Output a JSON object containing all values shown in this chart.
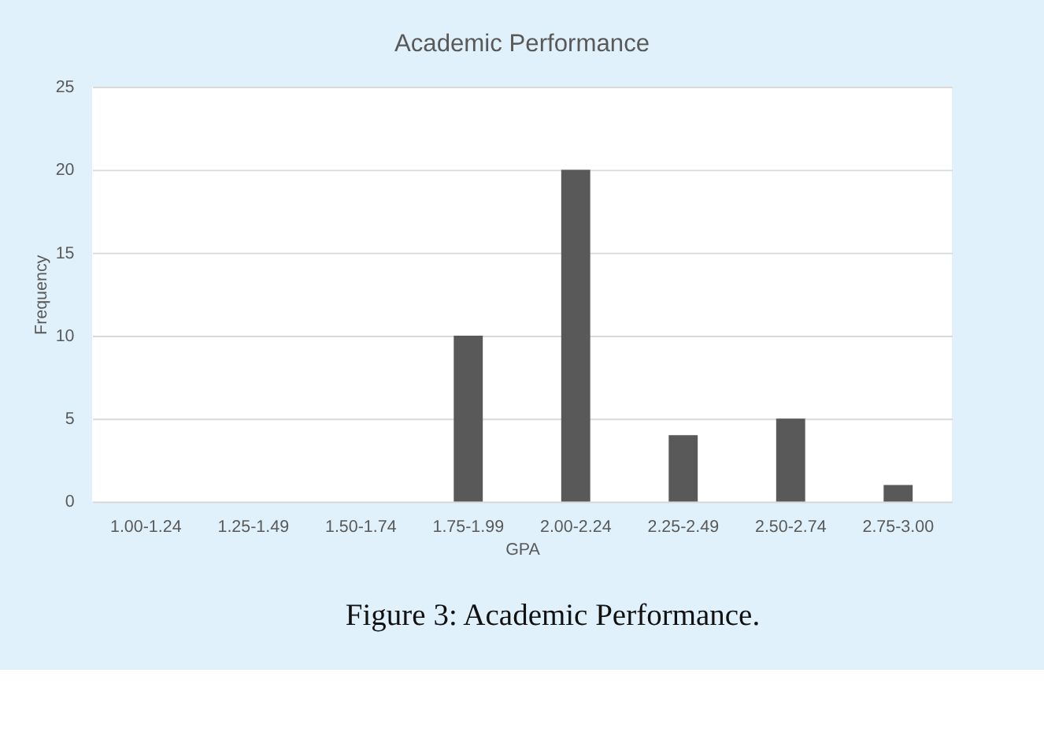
{
  "chart_data": {
    "type": "bar",
    "title": "Academic Performance",
    "xlabel": "GPA",
    "ylabel": "Frequency",
    "categories": [
      "1.00-1.24",
      "1.25-1.49",
      "1.50-1.74",
      "1.75-1.99",
      "2.00-2.24",
      "2.25-2.49",
      "2.50-2.74",
      "2.75-3.00"
    ],
    "values": [
      0,
      0,
      0,
      10,
      20,
      4,
      5,
      1
    ],
    "color": "#595959",
    "ylim": [
      0,
      25
    ],
    "yticks": [
      0,
      5,
      10,
      15,
      20,
      25
    ],
    "grid": "y",
    "annotations": [
      "Figure 3: Academic Performance."
    ]
  }
}
